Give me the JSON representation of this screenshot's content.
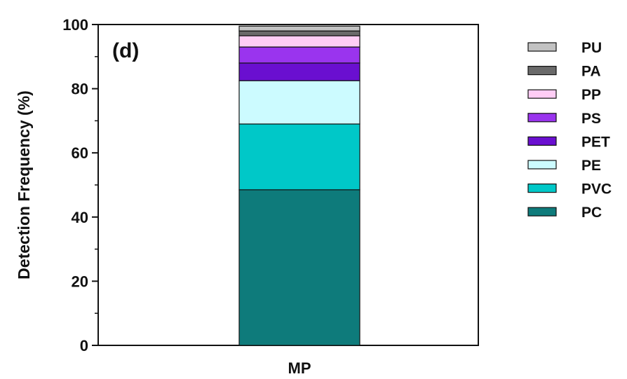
{
  "chart_data": {
    "type": "bar",
    "stacked": true,
    "panel_label": "(d)",
    "xlabel": "",
    "ylabel": "Detection Frequency (%)",
    "ylim": [
      0,
      100
    ],
    "yticks": [
      0,
      20,
      40,
      60,
      80,
      100
    ],
    "categories": [
      "MP"
    ],
    "series": [
      {
        "name": "PC",
        "values": [
          48.5
        ],
        "color": "#0e7b7b"
      },
      {
        "name": "PVC",
        "values": [
          20.5
        ],
        "color": "#00c8c8"
      },
      {
        "name": "PE",
        "values": [
          13.5
        ],
        "color": "#ccfbff"
      },
      {
        "name": "PET",
        "values": [
          5.5
        ],
        "color": "#6a0fd0"
      },
      {
        "name": "PS",
        "values": [
          5.0
        ],
        "color": "#9a34ee"
      },
      {
        "name": "PP",
        "values": [
          3.5
        ],
        "color": "#ffcdf5"
      },
      {
        "name": "PA",
        "values": [
          1.5
        ],
        "color": "#6a6a6a"
      },
      {
        "name": "PU",
        "values": [
          1.5
        ],
        "color": "#c2c2c2"
      }
    ],
    "legend_position": "right",
    "grid": false
  }
}
